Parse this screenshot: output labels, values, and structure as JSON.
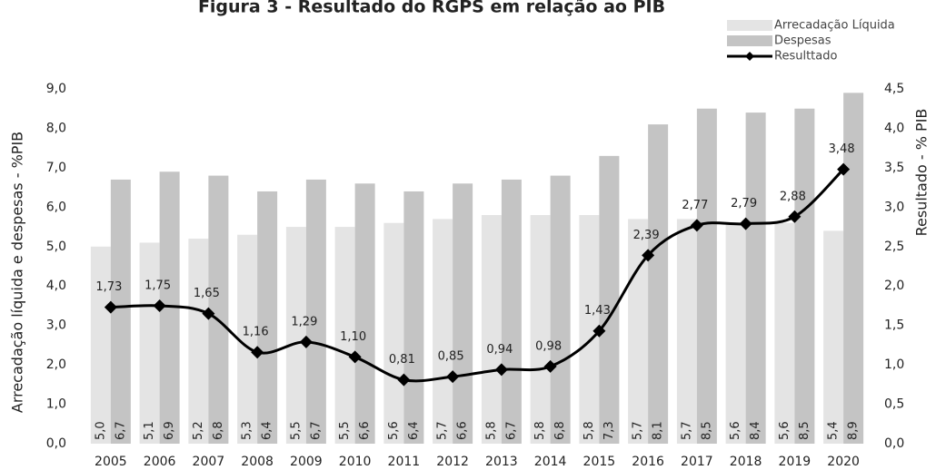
{
  "chart_data": {
    "type": "bar-line",
    "title": "Figura 3 - Resultado do RGPS em relação ao PIB",
    "ylabel": "Arrecadação líquida e despesas - %PIB",
    "y2label": "Resultado - % PIB",
    "categories": [
      "2005",
      "2006",
      "2007",
      "2008",
      "2009",
      "2010",
      "2011",
      "2012",
      "2013",
      "2014",
      "2015",
      "2016",
      "2017",
      "2018",
      "2019",
      "2020"
    ],
    "series": [
      {
        "name": "Arrecadação Líquida",
        "color": "#e4e4e4",
        "type": "bar",
        "values": [
          5.0,
          5.1,
          5.2,
          5.3,
          5.5,
          5.5,
          5.6,
          5.7,
          5.8,
          5.8,
          5.8,
          5.7,
          5.7,
          5.6,
          5.6,
          5.4
        ],
        "value_labels": [
          "5,0",
          "5,1",
          "5,2",
          "5,3",
          "5,5",
          "5,5",
          "5,6",
          "5,7",
          "5,8",
          "5,8",
          "5,8",
          "5,7",
          "5,7",
          "5,6",
          "5,6",
          "5,4"
        ]
      },
      {
        "name": "Despesas",
        "color": "#c4c4c4",
        "type": "bar",
        "values": [
          6.7,
          6.9,
          6.8,
          6.4,
          6.7,
          6.6,
          6.4,
          6.6,
          6.7,
          6.8,
          7.3,
          8.1,
          8.5,
          8.4,
          8.5,
          8.9
        ],
        "value_labels": [
          "6,7",
          "6,9",
          "6,8",
          "6,4",
          "6,7",
          "6,6",
          "6,4",
          "6,6",
          "6,7",
          "6,8",
          "7,3",
          "8,1",
          "8,5",
          "8,4",
          "8,5",
          "8,9"
        ]
      },
      {
        "name": "Resulttado",
        "color": "#000000",
        "type": "line",
        "axis": "y2",
        "values": [
          1.73,
          1.75,
          1.65,
          1.16,
          1.29,
          1.1,
          0.81,
          0.85,
          0.94,
          0.98,
          1.43,
          2.39,
          2.77,
          2.79,
          2.88,
          3.48
        ],
        "value_labels": [
          "1,73",
          "1,75",
          "1,65",
          "1,16",
          "1,29",
          "1,10",
          "0,81",
          "0,85",
          "0,94",
          "0,98",
          "1,43",
          "2,39",
          "2,77",
          "2,79",
          "2,88",
          "3,48"
        ]
      }
    ],
    "ylim": [
      0,
      9
    ],
    "yticks": [
      {
        "value": 0,
        "label": "0,0"
      },
      {
        "value": 1,
        "label": "1,0"
      },
      {
        "value": 2,
        "label": "2,0"
      },
      {
        "value": 3,
        "label": "3,0"
      },
      {
        "value": 4,
        "label": "4,0"
      },
      {
        "value": 5,
        "label": "5,0"
      },
      {
        "value": 6,
        "label": "6,0"
      },
      {
        "value": 7,
        "label": "7,0"
      },
      {
        "value": 8,
        "label": "8,0"
      },
      {
        "value": 9,
        "label": "9,0"
      }
    ],
    "y2lim": [
      0,
      4.5
    ],
    "y2ticks": [
      {
        "value": 0,
        "label": "0,0"
      },
      {
        "value": 0.5,
        "label": "0,5"
      },
      {
        "value": 1,
        "label": "1,0"
      },
      {
        "value": 1.5,
        "label": "1,5"
      },
      {
        "value": 2,
        "label": "2,0"
      },
      {
        "value": 2.5,
        "label": "2,5"
      },
      {
        "value": 3,
        "label": "3,0"
      },
      {
        "value": 3.5,
        "label": "3,5"
      },
      {
        "value": 4,
        "label": "4,0"
      },
      {
        "value": 4.5,
        "label": "4,5"
      }
    ],
    "grid": false
  }
}
